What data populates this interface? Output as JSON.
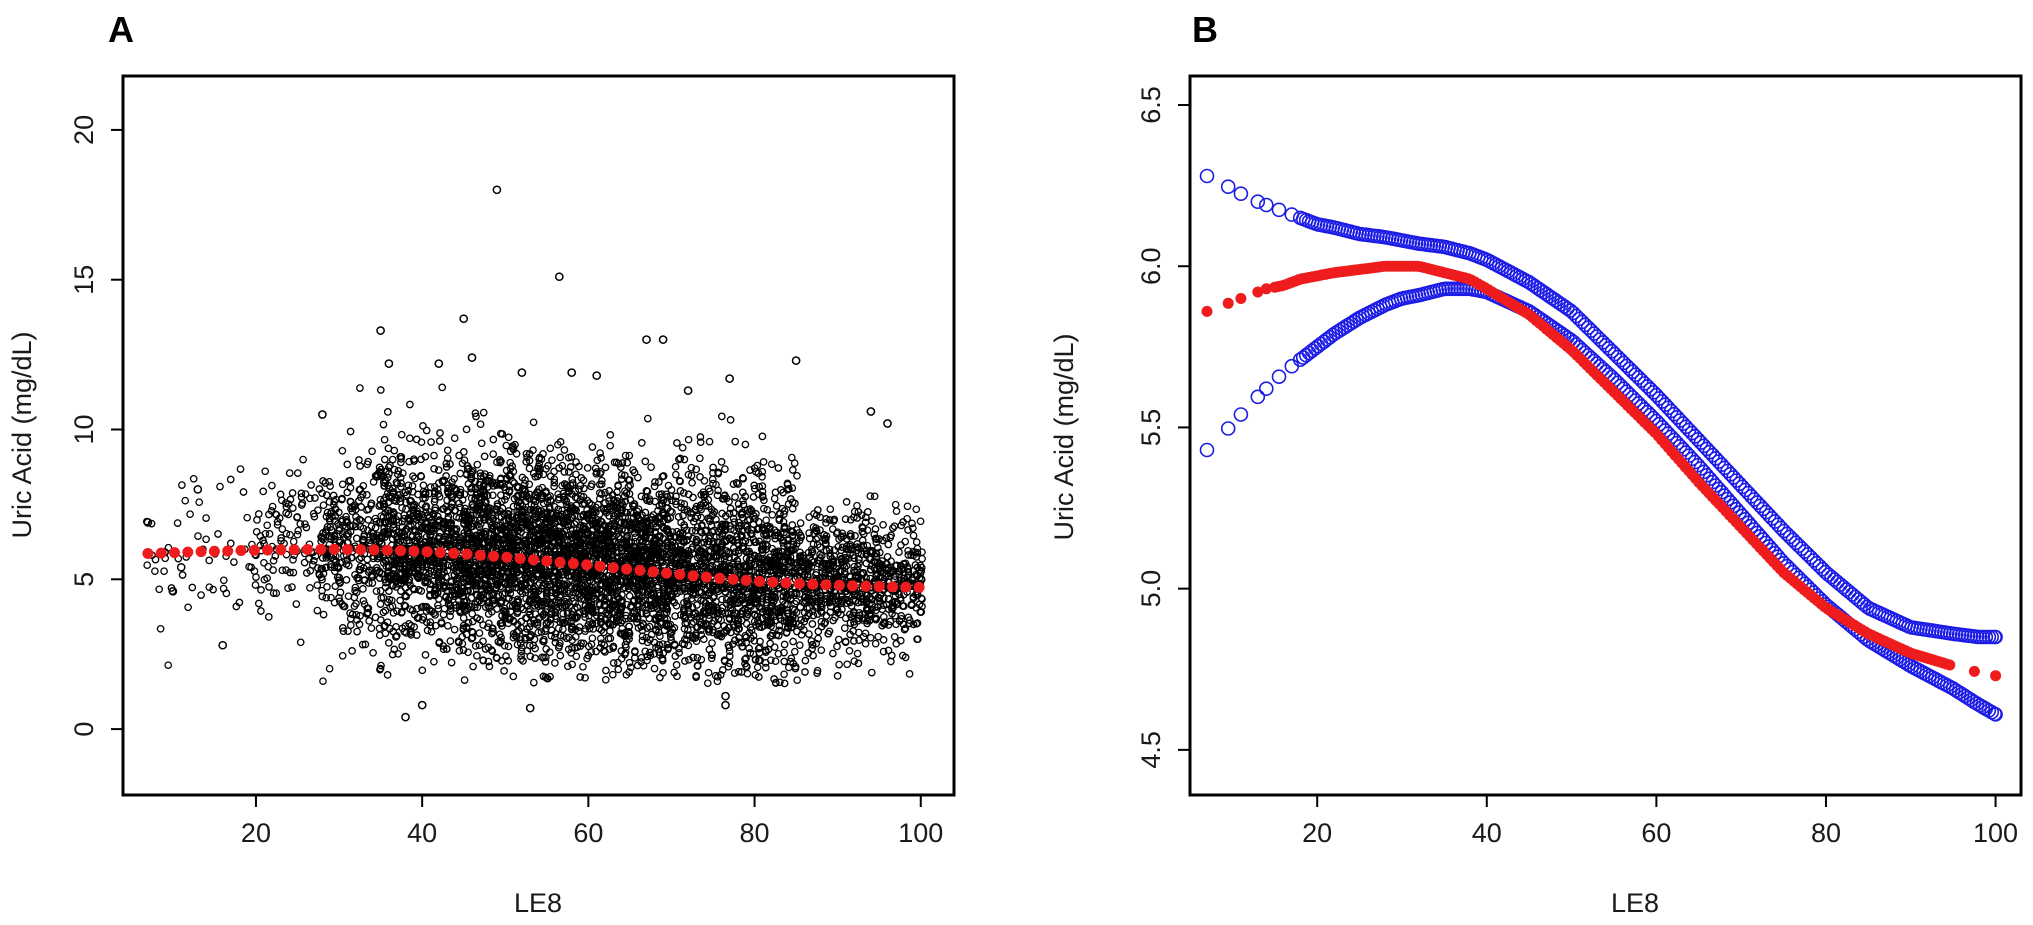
{
  "chart_data": [
    {
      "panel": "A",
      "type": "scatter",
      "title": "",
      "xlabel": "LE8",
      "ylabel": "Uric Acid (mg/dL)",
      "xlim": [
        4,
        104
      ],
      "ylim": [
        -2.2,
        21.8
      ],
      "xticks": [
        20,
        40,
        60,
        80,
        100
      ],
      "yticks": [
        0,
        5,
        10,
        15,
        20
      ],
      "grid": false,
      "legend": "none",
      "series": [
        {
          "marker": "open-circle",
          "color": "#000000",
          "note_points": [
            [
              49,
              18.0
            ],
            [
              56.5,
              15.1
            ],
            [
              45,
              13.7
            ],
            [
              35,
              13.3
            ],
            [
              67,
              13.0
            ],
            [
              69,
              13.0
            ],
            [
              36,
              12.2
            ],
            [
              42,
              12.2
            ],
            [
              85,
              12.3
            ],
            [
              46,
              12.4
            ],
            [
              52,
              11.9
            ],
            [
              58,
              11.9
            ],
            [
              61,
              11.8
            ],
            [
              77,
              11.7
            ],
            [
              72,
              11.3
            ],
            [
              94,
              10.6
            ],
            [
              96,
              10.2
            ],
            [
              28,
              10.5
            ],
            [
              38,
              0.4
            ],
            [
              40,
              0.8
            ],
            [
              53,
              0.7
            ],
            [
              76.5,
              0.8
            ],
            [
              76.5,
              1.1
            ],
            [
              7,
              6.9
            ],
            [
              13,
              8.0
            ],
            [
              10,
              4.6
            ],
            [
              16,
              2.8
            ],
            [
              11,
              5.4
            ],
            [
              9,
              5.9
            ]
          ],
          "bulk_description": "dense cloud of observations"
        },
        {
          "name": "",
          "marker": "filled-circle",
          "color": "#ee1c1c",
          "x": [
            7,
            10,
            12,
            14,
            16,
            18,
            20,
            22,
            25,
            28,
            30,
            35,
            40,
            45,
            50,
            55,
            60,
            65,
            70,
            75,
            80,
            85,
            90,
            95,
            100
          ],
          "y": [
            5.86,
            5.89,
            5.91,
            5.93,
            5.94,
            5.96,
            5.97,
            5.98,
            5.99,
            6.0,
            6.0,
            5.98,
            5.93,
            5.85,
            5.74,
            5.61,
            5.48,
            5.33,
            5.19,
            5.05,
            4.94,
            4.86,
            4.8,
            4.76,
            4.73
          ]
        }
      ]
    },
    {
      "panel": "B",
      "type": "line",
      "title": "",
      "xlabel": "LE8",
      "ylabel": "Uric Acid (mg/dL)",
      "xlim": [
        5,
        103
      ],
      "ylim": [
        4.36,
        6.59
      ],
      "xticks": [
        20,
        40,
        60,
        80,
        100
      ],
      "yticks": [
        4.5,
        5.0,
        5.5,
        6.0,
        6.5
      ],
      "grid": false,
      "legend": "none",
      "series": [
        {
          "name": "",
          "marker": "filled-circle",
          "color": "#ee1c1c",
          "x": [
            7,
            10,
            12,
            14,
            16,
            18,
            20,
            22,
            25,
            28,
            30,
            32,
            35,
            38,
            40,
            45,
            50,
            55,
            60,
            65,
            70,
            75,
            80,
            85,
            90,
            95,
            98,
            100
          ],
          "y": [
            5.86,
            5.89,
            5.91,
            5.93,
            5.94,
            5.96,
            5.97,
            5.98,
            5.99,
            6.0,
            6.0,
            6.0,
            5.98,
            5.96,
            5.93,
            5.85,
            5.74,
            5.61,
            5.48,
            5.33,
            5.19,
            5.05,
            4.94,
            4.86,
            4.8,
            4.76,
            4.74,
            4.73
          ]
        },
        {
          "name": "",
          "marker": "open-circle",
          "color": "#1c1ce6",
          "x": [
            7,
            10,
            12,
            14,
            16,
            18,
            20,
            22,
            25,
            28,
            30,
            32,
            35,
            38,
            40,
            45,
            50,
            55,
            60,
            65,
            70,
            75,
            80,
            85,
            90,
            95,
            98,
            100
          ],
          "y": [
            6.28,
            6.24,
            6.21,
            6.19,
            6.17,
            6.15,
            6.13,
            6.12,
            6.1,
            6.09,
            6.08,
            6.07,
            6.06,
            6.04,
            6.02,
            5.95,
            5.86,
            5.73,
            5.6,
            5.46,
            5.32,
            5.18,
            5.05,
            4.94,
            4.88,
            4.86,
            4.85,
            4.85
          ]
        },
        {
          "name": "",
          "marker": "open-circle",
          "color": "#1c1ce6",
          "x": [
            7,
            10,
            12,
            14,
            16,
            18,
            20,
            22,
            25,
            28,
            30,
            32,
            35,
            38,
            40,
            45,
            50,
            55,
            60,
            65,
            70,
            75,
            80,
            85,
            90,
            95,
            98,
            100
          ],
          "y": [
            5.43,
            5.51,
            5.57,
            5.62,
            5.67,
            5.71,
            5.75,
            5.79,
            5.84,
            5.88,
            5.9,
            5.91,
            5.93,
            5.93,
            5.92,
            5.86,
            5.77,
            5.65,
            5.52,
            5.38,
            5.23,
            5.08,
            4.95,
            4.84,
            4.76,
            4.69,
            4.64,
            4.61
          ]
        }
      ]
    }
  ],
  "panels": {
    "a": {
      "letter": "A"
    },
    "b": {
      "letter": "B"
    }
  }
}
